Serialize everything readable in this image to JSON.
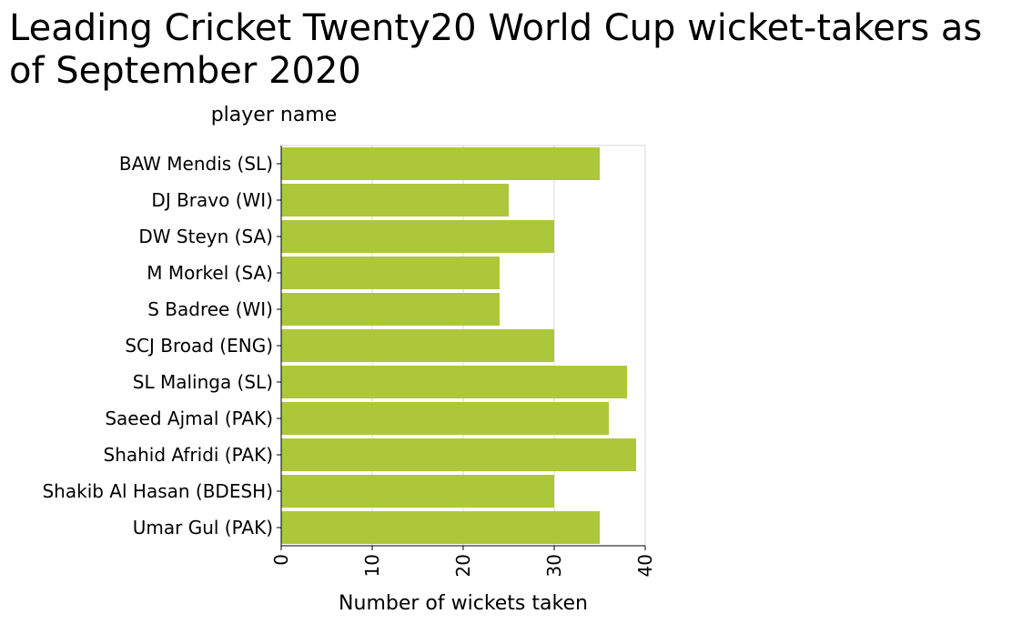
{
  "chart_data": {
    "type": "bar",
    "orientation": "horizontal",
    "title": "Leading Cricket Twenty20 World Cup wicket-takers as of September 2020",
    "ylabel": "player name",
    "xlabel": "Number of wickets taken",
    "categories": [
      "BAW Mendis (SL)",
      "DJ Bravo (WI)",
      "DW Steyn (SA)",
      "M Morkel (SA)",
      "S Badree (WI)",
      "SCJ Broad (ENG)",
      "SL Malinga (SL)",
      "Saeed Ajmal (PAK)",
      "Shahid Afridi (PAK)",
      "Shakib Al Hasan (BDESH)",
      "Umar Gul (PAK)"
    ],
    "values": [
      35,
      25,
      30,
      24,
      24,
      30,
      38,
      36,
      39,
      30,
      35
    ],
    "xlim": [
      0,
      40
    ],
    "xticks": [
      "0",
      "10",
      "20",
      "30",
      "40"
    ],
    "grid": true,
    "bar_color": "#adc73a"
  }
}
